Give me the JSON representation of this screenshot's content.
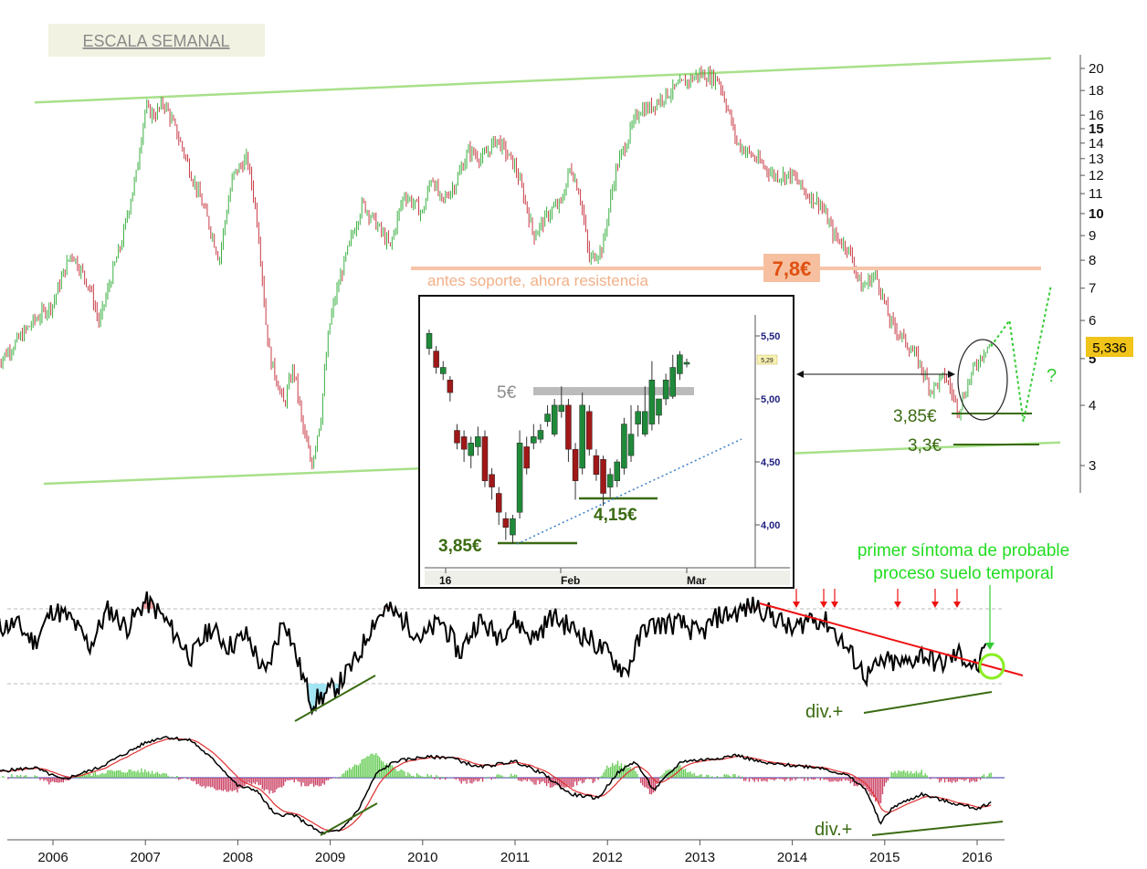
{
  "chart_data": [
    {
      "type": "line",
      "title": "ESCALA SEMANAL",
      "yaxis_scale": "log",
      "y_ticks": [
        {
          "value": 20,
          "label": "20",
          "bold": false
        },
        {
          "value": 18,
          "label": "18",
          "bold": false
        },
        {
          "value": 16,
          "label": "16",
          "bold": false
        },
        {
          "value": 15,
          "label": "15",
          "bold": true
        },
        {
          "value": 14,
          "label": "14",
          "bold": false
        },
        {
          "value": 13,
          "label": "13",
          "bold": false
        },
        {
          "value": 12,
          "label": "12",
          "bold": false
        },
        {
          "value": 11,
          "label": "11",
          "bold": false
        },
        {
          "value": 10,
          "label": "10",
          "bold": true
        },
        {
          "value": 9,
          "label": "9",
          "bold": false
        },
        {
          "value": 8,
          "label": "8",
          "bold": false
        },
        {
          "value": 7,
          "label": "7",
          "bold": false
        },
        {
          "value": 6,
          "label": "6",
          "bold": false
        },
        {
          "value": 5,
          "label": "5",
          "bold": true
        },
        {
          "value": 4,
          "label": "4",
          "bold": false
        },
        {
          "value": 3,
          "label": "3",
          "bold": false
        }
      ],
      "x_ticks": [
        "2006",
        "2007",
        "2008",
        "2009",
        "2010",
        "2011",
        "2012",
        "2013",
        "2014",
        "2015",
        "2016"
      ],
      "last_price": "5,336",
      "series": [
        {
          "x": [
            2005.4,
            2005.6,
            2005.8,
            2006.0,
            2006.2,
            2006.4,
            2006.5,
            2006.6,
            2006.75,
            2006.9,
            2007.0,
            2007.1,
            2007.2,
            2007.35,
            2007.5,
            2007.65,
            2007.8,
            2007.95,
            2008.1,
            2008.2,
            2008.3,
            2008.35,
            2008.5,
            2008.6,
            2008.7,
            2008.8,
            2008.9,
            2009.0,
            2009.2,
            2009.35,
            2009.5,
            2009.65,
            2009.8,
            2010.0,
            2010.1,
            2010.2,
            2010.35,
            2010.5,
            2010.65,
            2010.8,
            2011.0,
            2011.2,
            2011.4,
            2011.5,
            2011.6,
            2011.7,
            2011.8,
            2011.95,
            2012.1,
            2012.2,
            2012.35,
            2012.45,
            2012.6,
            2012.8,
            2013.0,
            2013.2,
            2013.4,
            2013.6,
            2013.8,
            2014.0,
            2014.15,
            2014.3,
            2014.45,
            2014.6,
            2014.75,
            2014.9,
            2015.05,
            2015.2,
            2015.35,
            2015.5,
            2015.65,
            2015.8,
            2015.95,
            2016.0,
            2016.05,
            2016.1,
            2016.15
          ],
          "values": [
            4.9,
            5.4,
            6.0,
            6.5,
            8.3,
            7.0,
            5.9,
            7.0,
            8.8,
            12.0,
            16.5,
            16.0,
            17.0,
            14.5,
            12.0,
            10.0,
            8.0,
            12.0,
            13.0,
            10.0,
            6.0,
            5.0,
            4.0,
            4.8,
            3.6,
            3.0,
            3.8,
            6.0,
            8.5,
            10.5,
            9.5,
            8.5,
            11.0,
            10.0,
            12.0,
            10.5,
            11.5,
            13.5,
            13.0,
            14.3,
            12.5,
            9.0,
            10.2,
            10.5,
            12.5,
            11.0,
            8.0,
            8.5,
            12.5,
            14.0,
            16.5,
            16.5,
            17.5,
            18.5,
            19.5,
            19.0,
            14.0,
            13.0,
            12.0,
            12.0,
            11.0,
            10.5,
            9.0,
            8.5,
            7.0,
            7.5,
            6.0,
            5.5,
            5.0,
            4.3,
            4.6,
            3.9,
            4.7,
            4.9,
            5.1,
            5.3,
            5.336
          ]
        }
      ],
      "trendlines": [
        {
          "name": "upper",
          "x": [
            2005.8,
            2016.8
          ],
          "values": [
            17.0,
            21.0
          ]
        },
        {
          "name": "lower",
          "x": [
            2005.9,
            2016.9
          ],
          "values": [
            2.75,
            3.35
          ]
        }
      ],
      "support_resistance": [
        {
          "value": 7.8,
          "label": "7,8€"
        },
        {
          "value": 3.85,
          "label": "3,85€"
        },
        {
          "value": 3.3,
          "label": "3,3€"
        }
      ],
      "projection": {
        "x": [
          2016.15,
          2016.35,
          2016.5,
          2016.8
        ],
        "values": [
          5.3,
          6.0,
          3.7,
          7.1
        ],
        "mark": "?"
      },
      "annotations": [
        "antes soporte, ahora resistencia",
        "7,8€",
        "3,85€",
        "3,3€",
        "?"
      ]
    },
    {
      "type": "line",
      "title": "",
      "name": "inset-daily",
      "y_ticks": [
        {
          "value": 5.5,
          "label": "5,50"
        },
        {
          "value": 5.0,
          "label": "5,00"
        },
        {
          "value": 4.5,
          "label": "4,50"
        },
        {
          "value": 4.0,
          "label": "4,00"
        }
      ],
      "x_ticks": [
        "16",
        "Feb",
        "Mar"
      ],
      "last_value_tag": "5,29",
      "candles": {
        "open": [
          5.4,
          5.38,
          5.2,
          5.15,
          4.75,
          4.7,
          4.55,
          4.62,
          4.7,
          4.4,
          4.25,
          4.05,
          3.92,
          4.1,
          4.62,
          4.65,
          4.68,
          4.82,
          4.72,
          4.9,
          4.95,
          4.6,
          4.45,
          4.9,
          4.55,
          4.52,
          4.3,
          4.35,
          4.45,
          4.55,
          4.8,
          4.72,
          4.8,
          4.87,
          5.0,
          5.02,
          5.2,
          5.28
        ],
        "close": [
          5.52,
          5.25,
          5.25,
          5.05,
          4.65,
          4.6,
          4.65,
          4.7,
          4.35,
          4.3,
          4.1,
          3.98,
          4.05,
          4.65,
          4.45,
          4.7,
          4.75,
          4.88,
          4.95,
          4.95,
          4.6,
          4.35,
          4.95,
          4.6,
          4.4,
          4.25,
          4.4,
          4.5,
          4.8,
          4.72,
          4.9,
          4.9,
          5.15,
          5.0,
          5.15,
          5.25,
          5.35,
          5.29
        ],
        "high": [
          5.55,
          5.42,
          5.3,
          5.18,
          4.8,
          4.75,
          4.7,
          4.78,
          4.75,
          4.45,
          4.3,
          4.1,
          4.08,
          4.75,
          4.7,
          4.8,
          4.8,
          4.95,
          5.0,
          5.1,
          5.0,
          4.65,
          5.05,
          4.95,
          4.6,
          4.55,
          4.45,
          4.52,
          4.85,
          4.95,
          4.95,
          5.1,
          5.3,
          5.0,
          5.2,
          5.35,
          5.38,
          5.32
        ],
        "low": [
          5.35,
          5.2,
          5.15,
          4.98,
          4.6,
          4.5,
          4.45,
          4.55,
          4.3,
          4.2,
          4.0,
          3.88,
          3.85,
          4.05,
          4.4,
          4.6,
          4.65,
          4.78,
          4.7,
          4.85,
          4.5,
          4.2,
          4.4,
          4.55,
          4.35,
          4.15,
          4.22,
          4.3,
          4.4,
          4.5,
          4.7,
          4.7,
          4.75,
          4.8,
          4.95,
          5.0,
          5.15,
          5.25
        ]
      },
      "levels": [
        {
          "value": 5.0,
          "label": "5€"
        },
        {
          "value": 4.15,
          "label": "4,15€"
        },
        {
          "value": 3.85,
          "label": "3,85€"
        }
      ]
    },
    {
      "type": "line",
      "title": "",
      "name": "oscillator",
      "annotations": [
        "primer síntoma de probable",
        "proceso suelo temporal",
        "div.+"
      ],
      "series": [
        {
          "x": [
            2005.4,
            2005.6,
            2005.8,
            2006.0,
            2006.2,
            2006.4,
            2006.6,
            2006.8,
            2007.0,
            2007.15,
            2007.3,
            2007.5,
            2007.7,
            2007.9,
            2008.1,
            2008.3,
            2008.5,
            2008.7,
            2008.8,
            2008.95,
            2009.1,
            2009.3,
            2009.45,
            2009.6,
            2009.8,
            2010.0,
            2010.2,
            2010.4,
            2010.6,
            2010.8,
            2011.0,
            2011.2,
            2011.4,
            2011.6,
            2011.8,
            2012.0,
            2012.2,
            2012.4,
            2012.6,
            2012.8,
            2013.0,
            2013.2,
            2013.4,
            2013.6,
            2013.8,
            2014.0,
            2014.2,
            2014.4,
            2014.6,
            2014.8,
            2015.0,
            2015.2,
            2015.4,
            2015.6,
            2015.8,
            2016.0,
            2016.1
          ],
          "values": [
            70,
            72,
            62,
            80,
            74,
            60,
            80,
            70,
            84,
            78,
            68,
            54,
            70,
            60,
            66,
            44,
            76,
            44,
            30,
            34,
            40,
            54,
            72,
            80,
            74,
            64,
            74,
            56,
            74,
            66,
            74,
            64,
            76,
            70,
            64,
            56,
            46,
            70,
            72,
            72,
            66,
            76,
            78,
            82,
            76,
            68,
            76,
            72,
            58,
            44,
            52,
            50,
            56,
            50,
            56,
            48,
            58
          ]
        }
      ],
      "reference_levels": [
        80,
        40
      ],
      "trendline": {
        "x": [
          2013.65,
          2016.45
        ],
        "values": [
          86,
          33
        ]
      }
    },
    {
      "type": "line",
      "title": "",
      "name": "macd",
      "annotations": [
        "div.+"
      ],
      "series": [
        {
          "x": [
            2005.4,
            2005.8,
            2006.1,
            2006.5,
            2007.0,
            2007.2,
            2007.5,
            2007.8,
            2008.0,
            2008.2,
            2008.4,
            2008.6,
            2008.8,
            2008.9,
            2009.1,
            2009.3,
            2009.5,
            2009.7,
            2010.0,
            2010.3,
            2010.6,
            2011.0,
            2011.3,
            2011.6,
            2011.9,
            2012.1,
            2012.3,
            2012.5,
            2012.8,
            2013.1,
            2013.4,
            2013.7,
            2014.0,
            2014.3,
            2014.6,
            2014.8,
            2014.95,
            2015.1,
            2015.4,
            2015.7,
            2016.0,
            2016.15
          ],
          "values": [
            0.15,
            0.25,
            -0.05,
            0.25,
            0.85,
            1.0,
            0.9,
            0.3,
            -0.2,
            -0.3,
            -0.9,
            -0.9,
            -1.2,
            -1.35,
            -1.3,
            -0.8,
            0.1,
            0.4,
            0.5,
            0.5,
            0.25,
            0.4,
            0.1,
            -0.4,
            -0.5,
            0.1,
            0.4,
            -0.3,
            0.4,
            0.45,
            0.55,
            0.35,
            0.3,
            0.25,
            0.05,
            -0.3,
            -1.1,
            -0.7,
            -0.4,
            -0.6,
            -0.75,
            -0.6
          ]
        }
      ],
      "trendline": {
        "x": [
          2014.95,
          2016.3
        ],
        "values": [
          -1.15,
          -0.85
        ]
      }
    }
  ]
}
